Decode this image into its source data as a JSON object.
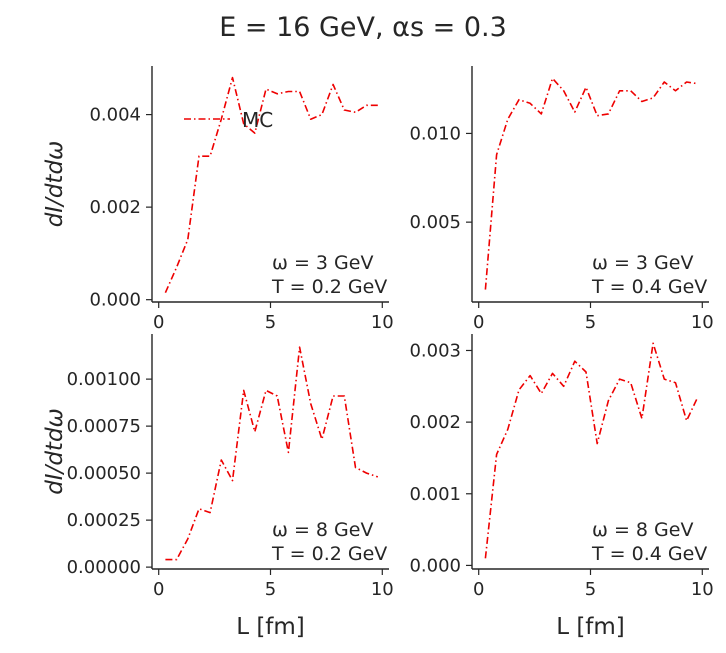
{
  "figure": {
    "title": "E = 16 GeV, αs = 0.3",
    "line_color": "#ee0000",
    "axis_color": "#262626"
  },
  "chart_data": [
    {
      "type": "line",
      "panel": "top-left",
      "annotation": [
        "ω = 3 GeV",
        "T = 0.2 GeV"
      ],
      "xlabel": "",
      "ylabel": "dI/dtdω",
      "legend": {
        "entries": [
          "MC"
        ],
        "position": "upper-left"
      },
      "xlim": [
        -0.3,
        10.3
      ],
      "ylim": [
        -5e-05,
        0.00505
      ],
      "xticks": [
        0,
        5,
        10
      ],
      "xtick_labels": [
        "0",
        "5",
        "10"
      ],
      "yticks": [
        0,
        0.002,
        0.004
      ],
      "ytick_labels": [
        "0.000",
        "0.002",
        "0.004"
      ],
      "grid": false,
      "series": [
        {
          "name": "MC",
          "x": [
            0.3,
            0.8,
            1.3,
            1.8,
            2.3,
            2.8,
            3.3,
            3.8,
            4.3,
            4.8,
            5.3,
            5.8,
            6.3,
            6.8,
            7.3,
            7.8,
            8.3,
            8.8,
            9.3,
            9.8
          ],
          "y": [
            0.00015,
            0.0007,
            0.0013,
            0.0031,
            0.0031,
            0.0039,
            0.0048,
            0.0038,
            0.0036,
            0.00455,
            0.00445,
            0.0045,
            0.0045,
            0.0039,
            0.004,
            0.00465,
            0.0041,
            0.00405,
            0.0042,
            0.0042
          ]
        }
      ]
    },
    {
      "type": "line",
      "panel": "top-right",
      "annotation": [
        "ω = 3 GeV",
        "T = 0.4 GeV"
      ],
      "xlabel": "",
      "ylabel": "",
      "xlim": [
        -0.3,
        10.3
      ],
      "ylim": [
        0.0005,
        0.0138
      ],
      "xticks": [
        0,
        5,
        10
      ],
      "xtick_labels": [
        "0",
        "5",
        "10"
      ],
      "yticks": [
        0.005,
        0.01
      ],
      "ytick_labels": [
        "0.005",
        "0.010"
      ],
      "grid": false,
      "series": [
        {
          "name": "",
          "x": [
            0.3,
            0.8,
            1.3,
            1.8,
            2.3,
            2.8,
            3.3,
            3.8,
            4.3,
            4.8,
            5.3,
            5.8,
            6.3,
            6.8,
            7.3,
            7.8,
            8.3,
            8.8,
            9.3,
            9.8
          ],
          "y": [
            0.0012,
            0.0088,
            0.0108,
            0.0119,
            0.0117,
            0.0111,
            0.0131,
            0.0124,
            0.0112,
            0.0126,
            0.011,
            0.0111,
            0.0124,
            0.0124,
            0.0118,
            0.012,
            0.0129,
            0.0124,
            0.0129,
            0.0128
          ]
        }
      ]
    },
    {
      "type": "line",
      "panel": "bottom-left",
      "annotation": [
        "ω = 8 GeV",
        "T = 0.2 GeV"
      ],
      "xlabel": "L [fm]",
      "ylabel": "dI/dtdω",
      "xlim": [
        -0.3,
        10.3
      ],
      "ylim": [
        -1e-05,
        0.00124
      ],
      "xticks": [
        0,
        5,
        10
      ],
      "xtick_labels": [
        "0",
        "5",
        "10"
      ],
      "yticks": [
        0,
        0.00025,
        0.0005,
        0.00075,
        0.001
      ],
      "ytick_labels": [
        "0.00000",
        "0.00025",
        "0.00050",
        "0.00075",
        "0.00100"
      ],
      "grid": false,
      "series": [
        {
          "name": "",
          "x": [
            0.3,
            0.8,
            1.3,
            1.8,
            2.3,
            2.8,
            3.3,
            3.8,
            4.3,
            4.8,
            5.3,
            5.8,
            6.3,
            6.8,
            7.3,
            7.8,
            8.3,
            8.8,
            9.3,
            9.8
          ],
          "y": [
            4e-05,
            4e-05,
            0.00015,
            0.00031,
            0.00029,
            0.00057,
            0.00046,
            0.00094,
            0.00072,
            0.00094,
            0.00091,
            0.00061,
            0.00117,
            0.00087,
            0.00068,
            0.00091,
            0.00091,
            0.00053,
            0.0005,
            0.00048
          ]
        }
      ]
    },
    {
      "type": "line",
      "panel": "bottom-right",
      "annotation": [
        "ω = 8 GeV",
        "T = 0.4 GeV"
      ],
      "xlabel": "L [fm]",
      "ylabel": "",
      "xlim": [
        -0.3,
        10.3
      ],
      "ylim": [
        -5e-05,
        0.00323
      ],
      "xticks": [
        0,
        5,
        10
      ],
      "xtick_labels": [
        "0",
        "5",
        "10"
      ],
      "yticks": [
        0,
        0.001,
        0.002,
        0.003
      ],
      "ytick_labels": [
        "0.000",
        "0.001",
        "0.002",
        "0.003"
      ],
      "grid": false,
      "series": [
        {
          "name": "",
          "x": [
            0.3,
            0.8,
            1.3,
            1.8,
            2.3,
            2.8,
            3.3,
            3.8,
            4.3,
            4.8,
            5.3,
            5.8,
            6.3,
            6.8,
            7.3,
            7.8,
            8.3,
            8.8,
            9.3,
            9.8
          ],
          "y": [
            0.0001,
            0.00155,
            0.0019,
            0.00245,
            0.00265,
            0.0024,
            0.00268,
            0.0025,
            0.00285,
            0.0027,
            0.0017,
            0.0023,
            0.0026,
            0.00255,
            0.00205,
            0.0031,
            0.0026,
            0.00255,
            0.00202,
            0.00235
          ]
        }
      ]
    }
  ]
}
